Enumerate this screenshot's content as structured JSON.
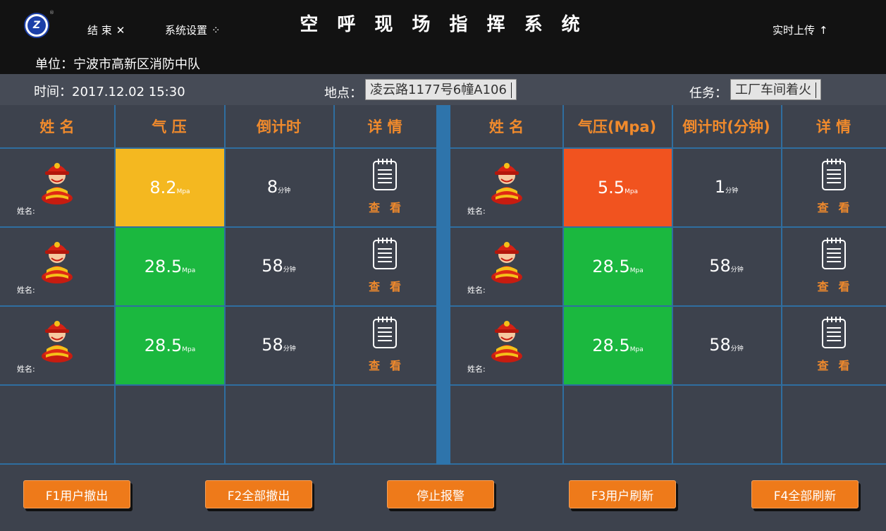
{
  "header": {
    "title": "空 呼 现 场 指 挥 系 统",
    "end_label": "结 束",
    "end_icon": "✕",
    "settings_label": "系统设置",
    "settings_icon": "⁘",
    "upload_label": "实时上传",
    "upload_icon": "↑",
    "logo_letter": "Z",
    "logo_mark": "®",
    "unit": "单位：宁波市高新区消防中队"
  },
  "info": {
    "time_label": "时间：2017.12.02   15:30",
    "location_label": "地点：",
    "location_value": "凌云路1177号6幢A106",
    "task_label": "任务：",
    "task_value": "工厂车间着火"
  },
  "columns_left": [
    "姓  名",
    "气  压",
    "倒计时",
    "详  情"
  ],
  "columns_right": [
    "姓  名",
    "气压(Mpa)",
    "倒计时(分钟)",
    "详  情"
  ],
  "name_prefix": "姓名:",
  "pressure_unit": "Mpa",
  "countdown_unit": "分钟",
  "detail_label": "查看",
  "left_rows": [
    {
      "pressure": "8.2",
      "countdown": "8",
      "status": "yellow"
    },
    {
      "pressure": "28.5",
      "countdown": "58",
      "status": "green"
    },
    {
      "pressure": "28.5",
      "countdown": "58",
      "status": "green"
    }
  ],
  "right_rows": [
    {
      "pressure": "5.5",
      "countdown": "1",
      "status": "orange"
    },
    {
      "pressure": "28.5",
      "countdown": "58",
      "status": "green"
    },
    {
      "pressure": "28.5",
      "countdown": "58",
      "status": "green"
    }
  ],
  "footer": {
    "buttons": [
      "F1用户撤出",
      "F2全部撤出",
      "停止报警",
      "F3用户刷新",
      "F4全部刷新"
    ]
  },
  "colors": {
    "yellow": "#f4b820",
    "green": "#1bb83f",
    "orange": "#f1531f",
    "accent": "#f08a2c"
  }
}
